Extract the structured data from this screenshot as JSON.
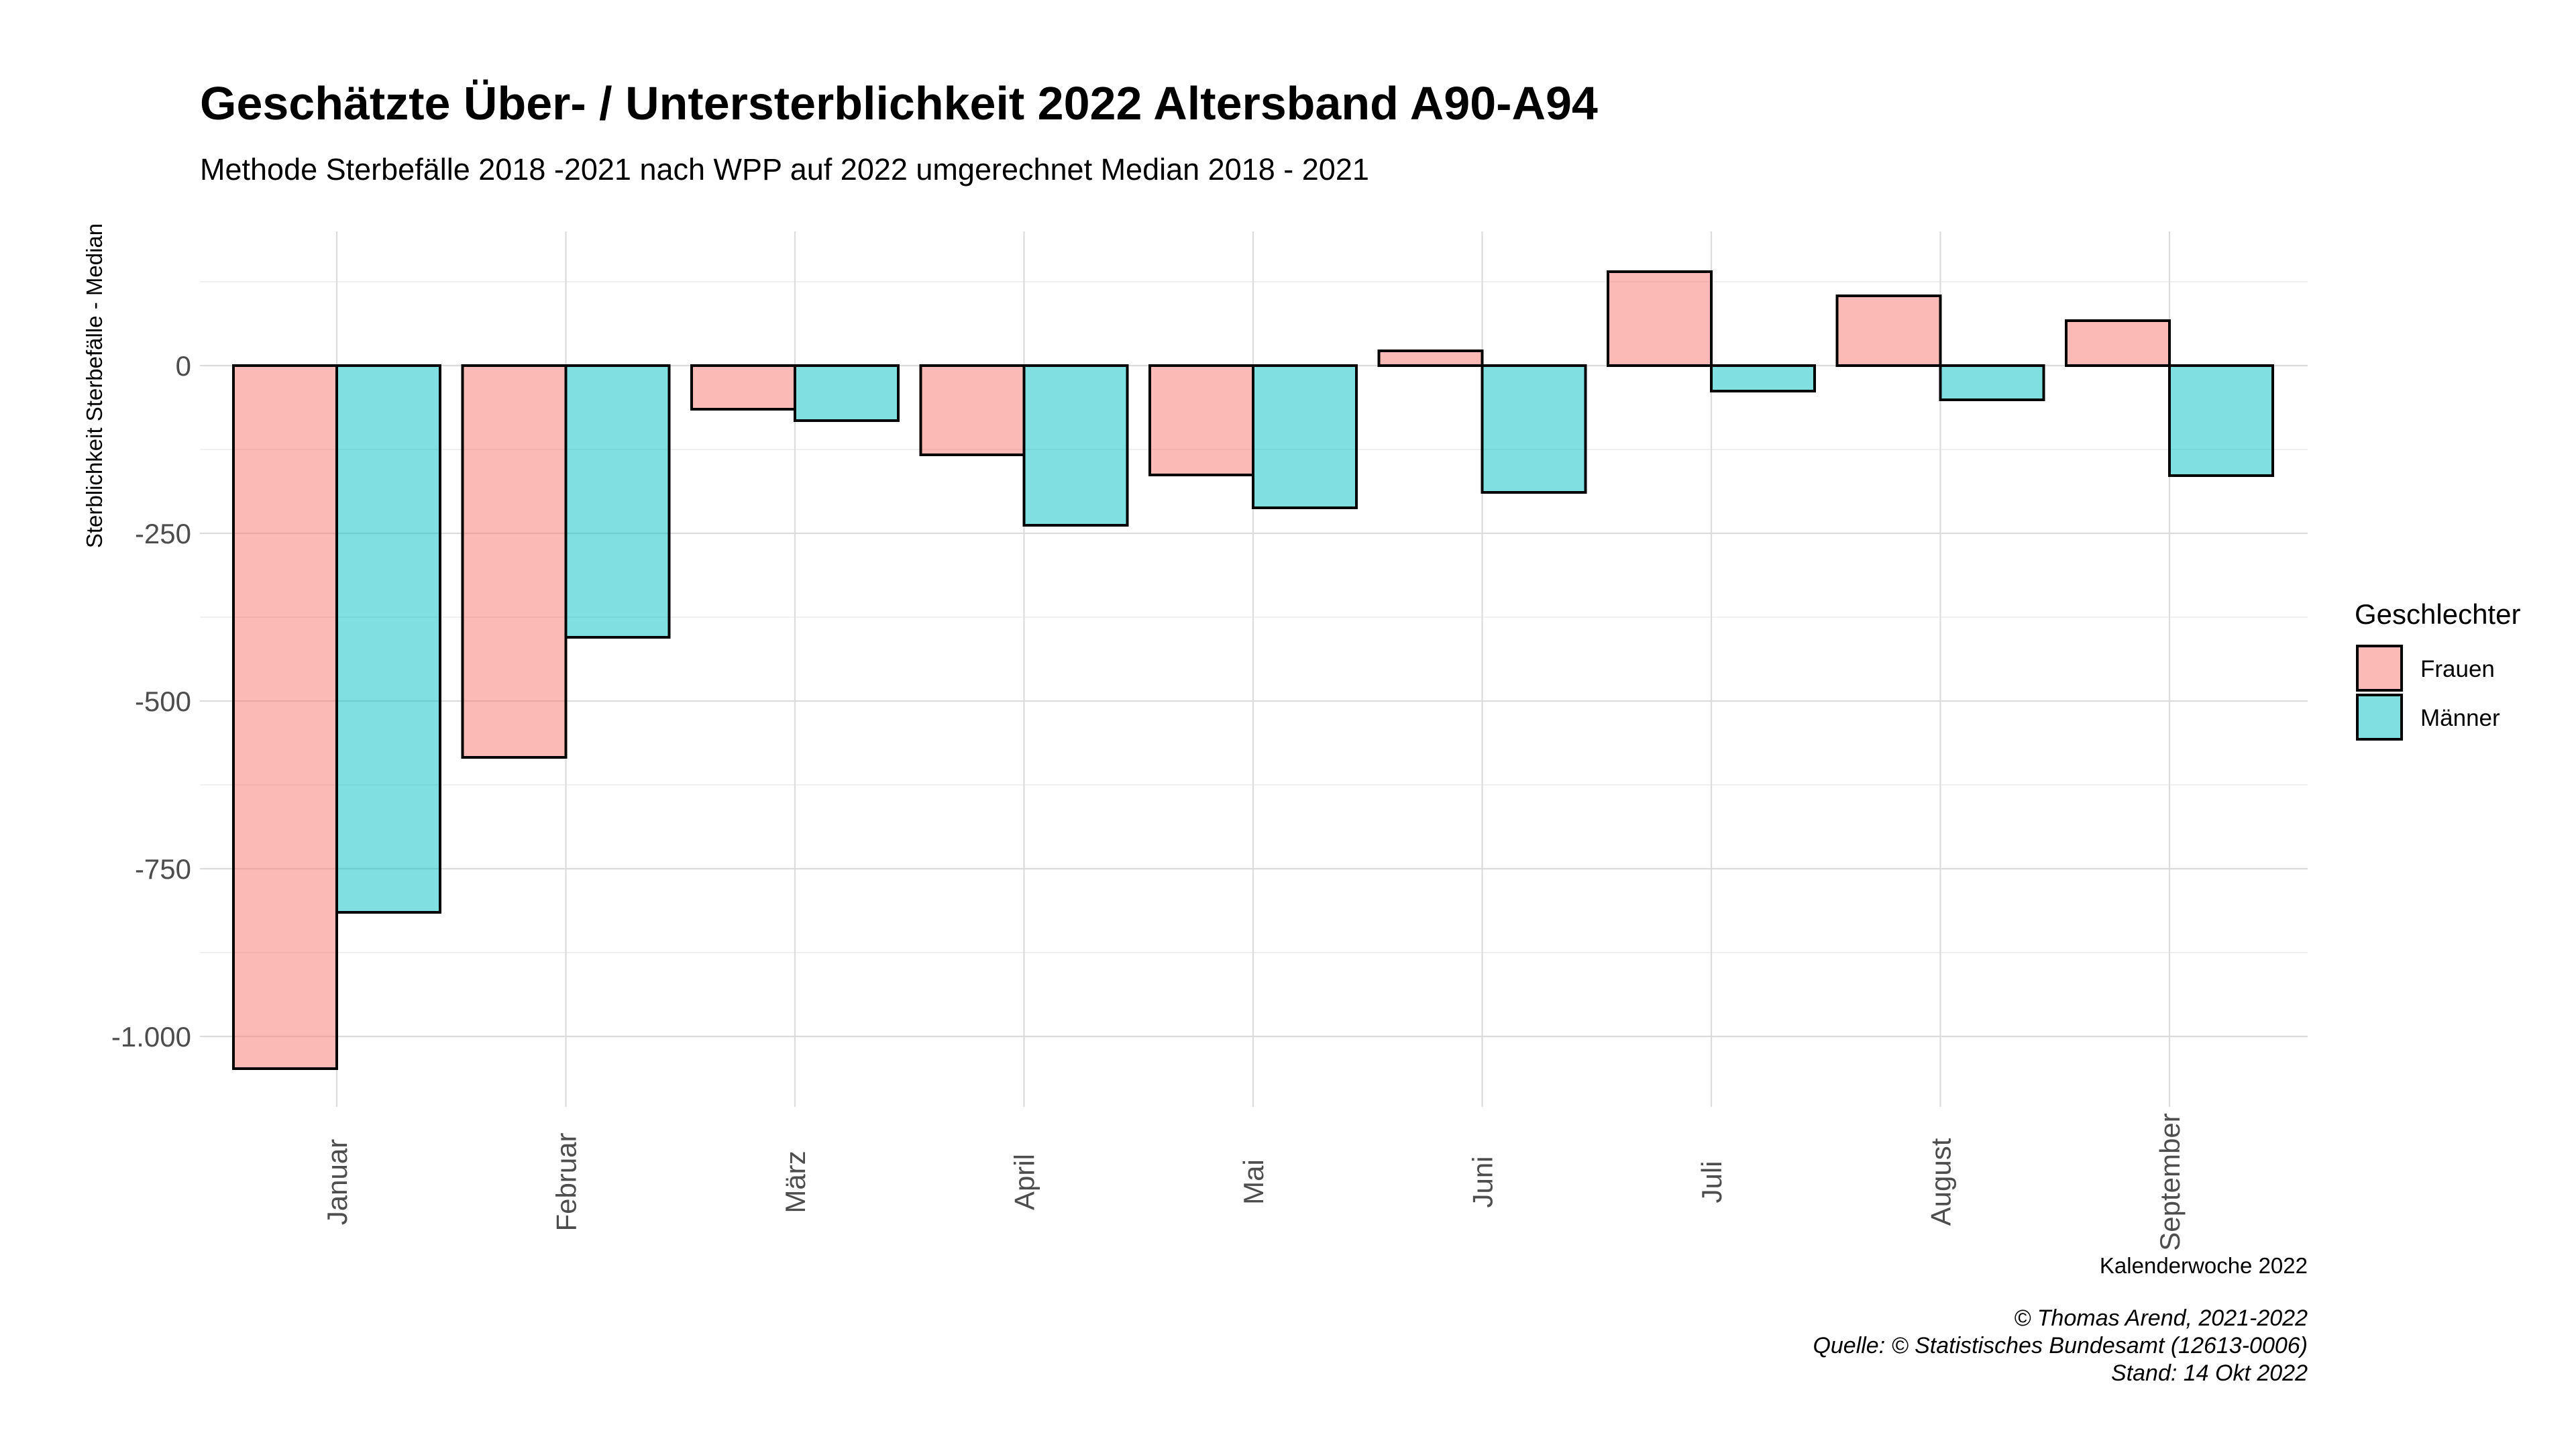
{
  "chart_data": {
    "type": "bar",
    "title": "Geschätzte Über- / Untersterblichkeit 2022 Altersband A90-A94",
    "subtitle": "Methode Sterbefälle 2018 -2021 nach WPP auf 2022 umgerechnet Median 2018 - 2021",
    "xlabel": "Kalenderwoche 2022",
    "ylabel": "Sterblichkeit Sterbefälle - Median",
    "categories": [
      "Januar",
      "Februar",
      "März",
      "April",
      "Mai",
      "Juni",
      "Juli",
      "August",
      "September"
    ],
    "series": [
      {
        "name": "Frauen",
        "color": "#F8766D",
        "values": [
          -1048,
          -584,
          -65,
          -133,
          -163,
          22,
          140,
          104,
          67
        ]
      },
      {
        "name": "Männer",
        "color": "#00BFC4",
        "values": [
          -815,
          -405,
          -82,
          -238,
          -212,
          -189,
          -38,
          -51,
          -164
        ]
      }
    ],
    "ylim": [
      -1100,
      125
    ],
    "yticks": [
      0,
      -250,
      -500,
      -750,
      -1000
    ],
    "ytick_labels": [
      "0",
      "-250",
      "-500",
      "-750",
      "-1.000"
    ],
    "grid": true,
    "legend_title": "Geschlechter",
    "legend_position": "right",
    "fill_opacity": 0.5
  },
  "caption": {
    "line1": "© Thomas Arend, 2021-2022",
    "line2": "Quelle: © Statistisches Bundesamt (12613-0006)",
    "line3": "Stand: 14 Okt 2022"
  }
}
